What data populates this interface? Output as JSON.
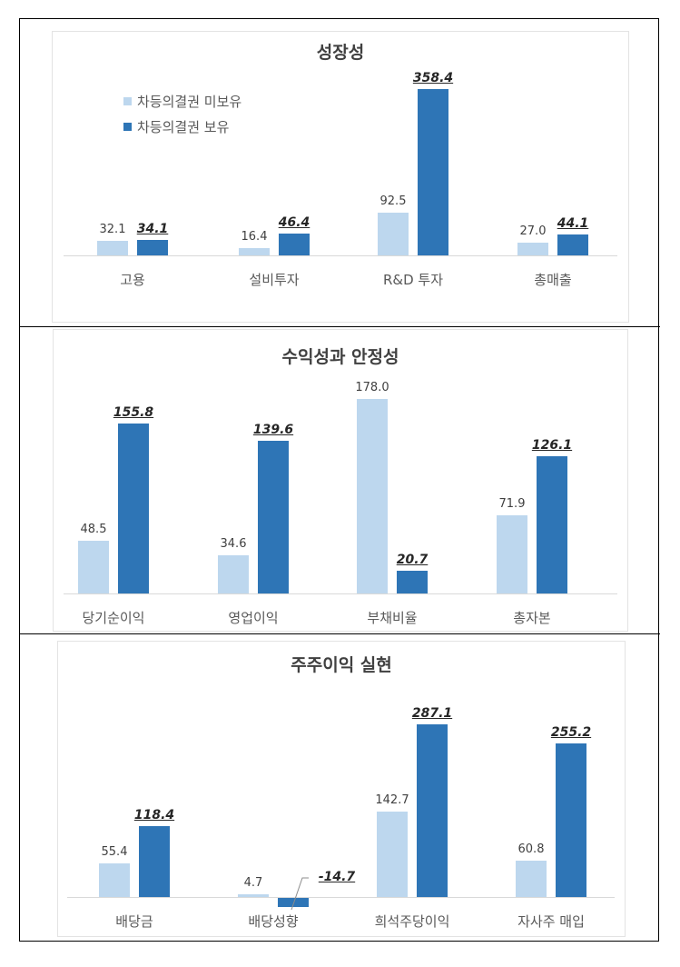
{
  "legend": [
    {
      "label": "차등의결권 미보유",
      "color": "#bdd7ee"
    },
    {
      "label": "차등의결권 보유",
      "color": "#2e75b6"
    }
  ],
  "colors": {
    "light": "#bdd7ee",
    "dark": "#2e75b6"
  },
  "chart_data": [
    {
      "type": "bar",
      "title": "성장성",
      "categories": [
        "고용",
        "설비투자",
        "R&D 투자",
        "총매출"
      ],
      "series": [
        {
          "name": "차등의결권 미보유",
          "values": [
            32.1,
            16.4,
            92.5,
            27.0
          ]
        },
        {
          "name": "차등의결권 보유",
          "values": [
            34.1,
            46.4,
            358.4,
            44.1
          ]
        }
      ],
      "labels": {
        "light": [
          "32.1",
          "16.4",
          "92.5",
          "27.0"
        ],
        "dark": [
          "34.1",
          "46.4",
          "358.4",
          "44.1"
        ]
      },
      "legend_position": "upper-left",
      "grid": false
    },
    {
      "type": "bar",
      "title": "수익성과 안정성",
      "categories": [
        "당기순이익",
        "영업이익",
        "부채비율",
        "총자본"
      ],
      "series": [
        {
          "name": "차등의결권 미보유",
          "values": [
            48.5,
            34.6,
            178.0,
            71.9
          ]
        },
        {
          "name": "차등의결권 보유",
          "values": [
            155.8,
            139.6,
            20.7,
            126.1
          ]
        }
      ],
      "labels": {
        "light": [
          "48.5",
          "34.6",
          "178.0",
          "71.9"
        ],
        "dark": [
          "155.8",
          "139.6",
          "20.7",
          "126.1"
        ]
      },
      "grid": false
    },
    {
      "type": "bar",
      "title": "주주이익 실현",
      "categories": [
        "배당금",
        "배당성향",
        "희석주당이익",
        "자사주 매입"
      ],
      "series": [
        {
          "name": "차등의결권 미보유",
          "values": [
            55.4,
            4.7,
            142.7,
            60.8
          ]
        },
        {
          "name": "차등의결권 보유",
          "values": [
            118.4,
            -14.7,
            287.1,
            255.2
          ]
        }
      ],
      "labels": {
        "light": [
          "55.4",
          "4.7",
          "142.7",
          "60.8"
        ],
        "dark": [
          "118.4",
          "-14.7",
          "287.1",
          "255.2"
        ]
      },
      "grid": false
    }
  ]
}
